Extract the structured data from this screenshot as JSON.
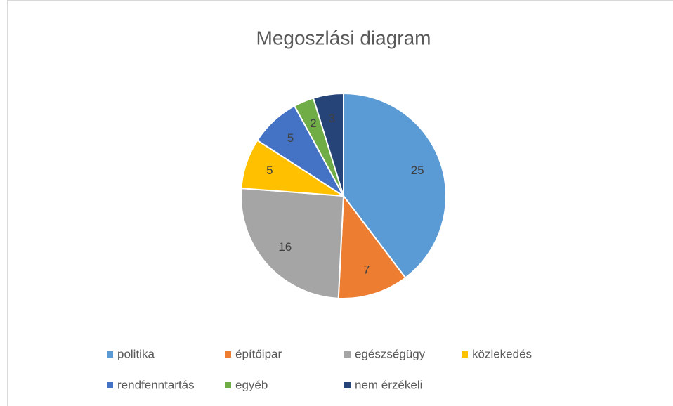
{
  "chart_data": {
    "type": "pie",
    "title": "Megoszlási diagram",
    "categories": [
      "politika",
      "építőipar",
      "egészségügy",
      "közlekedés",
      "rendfenntartás",
      "egyéb",
      "nem érzékeli"
    ],
    "values": [
      25,
      7,
      16,
      5,
      5,
      2,
      3
    ],
    "colors": [
      "#5b9bd5",
      "#ed7d31",
      "#a5a5a5",
      "#ffc000",
      "#4472c4",
      "#70ad47",
      "#264478"
    ],
    "legend": "bottom"
  }
}
